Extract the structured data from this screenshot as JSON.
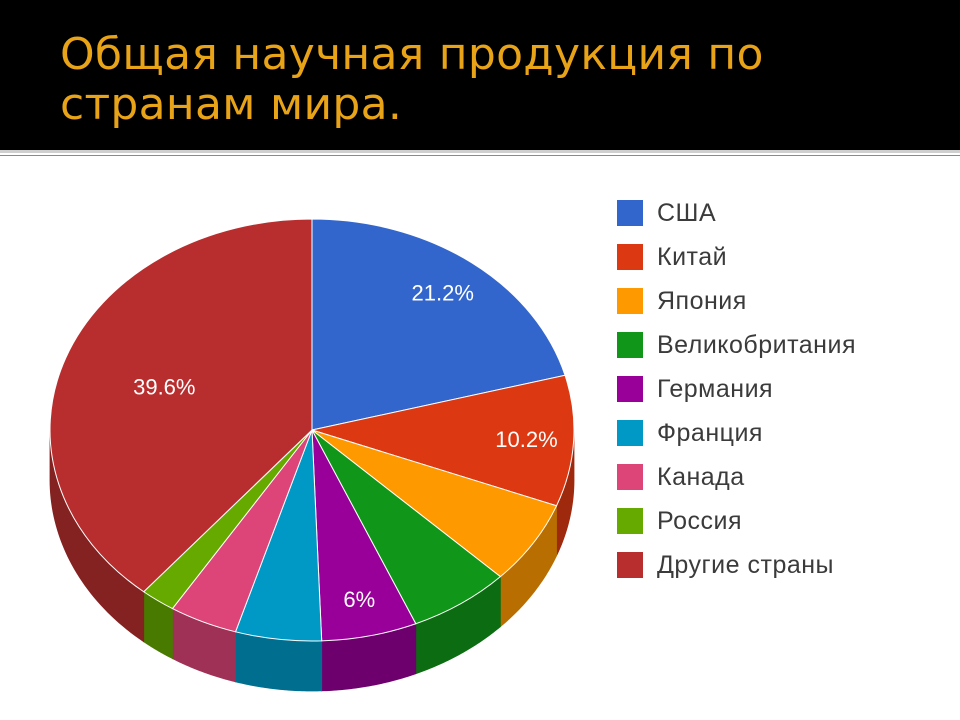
{
  "slide": {
    "title": "Общая научная продукция по странам мира."
  },
  "chart_data": {
    "type": "pie",
    "title": "",
    "view": "3d",
    "legend_position": "right",
    "categories": [
      "США",
      "Китай",
      "Япония",
      "Великобритания",
      "Германия",
      "Франция",
      "Канада",
      "Россия",
      "Другие страны"
    ],
    "values": [
      21.2,
      10.2,
      6.5,
      6.4,
      6.0,
      5.4,
      4.3,
      2.2,
      39.6
    ],
    "data_labels": [
      "21.2%",
      "10.2%",
      "",
      "",
      "6%",
      "",
      "",
      "",
      "39.6%"
    ],
    "colors": [
      "#3366cc",
      "#dc3912",
      "#ff9900",
      "#109618",
      "#990099",
      "#0099c6",
      "#dd4477",
      "#66aa00",
      "#b82e2e"
    ]
  }
}
